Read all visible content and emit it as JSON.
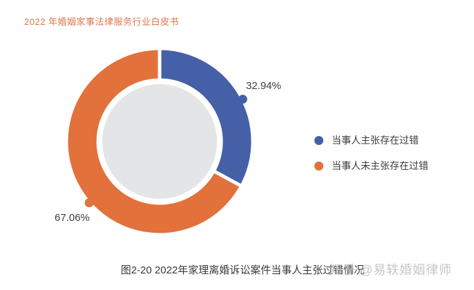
{
  "page": {
    "header": "2022 年婚姻家事法律服务行业白皮书",
    "caption": "图2-20  2022年家理离婚诉讼案件当事人主张过错情况",
    "watermark": "知乎 @易轶婚姻律师"
  },
  "chart_data": {
    "type": "pie",
    "subtype": "donut",
    "title": "图2-20 2022年家理离婚诉讼案件当事人主张过错情况",
    "categories": [
      "当事人主张存在过错",
      "当事人未主张存在过错"
    ],
    "values": [
      32.94,
      67.06
    ],
    "unit": "%",
    "data_labels": [
      "32.94%",
      "67.06%"
    ],
    "colors": [
      "#4560a7",
      "#e2713c"
    ],
    "hole_color": "#e4e5e7",
    "start_angle_deg": 0,
    "direction": "clockwise",
    "callout_angle_deg": [
      63,
      229
    ],
    "legend_position": "right",
    "legend": [
      "当事人主张存在过错",
      "当事人未主张存在过错"
    ]
  },
  "legend": {
    "items": [
      {
        "label": "当事人主张存在过错",
        "color": "#4560a7"
      },
      {
        "label": "当事人未主张存在过错",
        "color": "#e2713c"
      }
    ]
  }
}
